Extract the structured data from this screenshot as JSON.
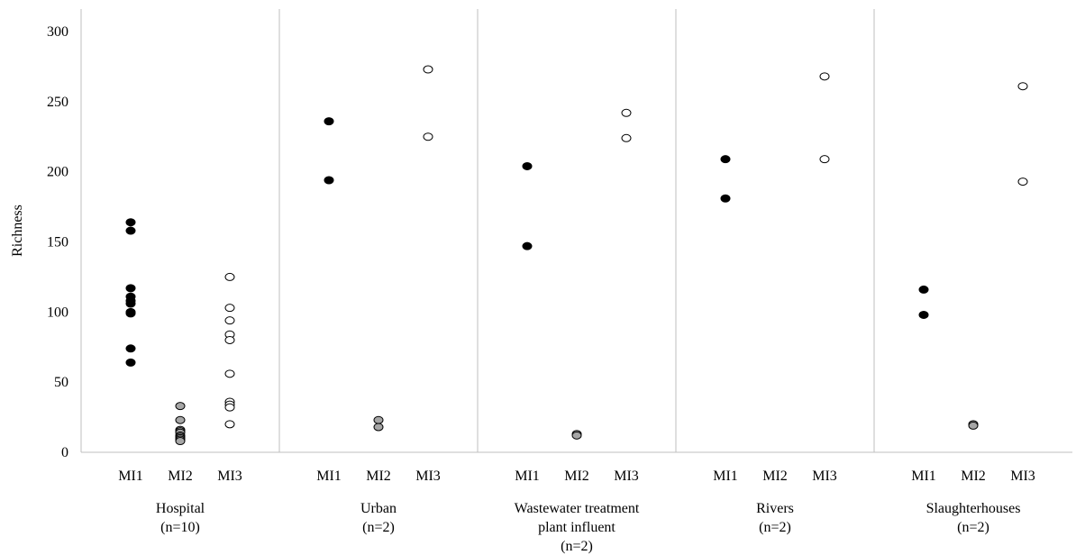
{
  "chart_data": {
    "type": "scatter",
    "title": "",
    "ylabel": "Richness",
    "xlabel": "",
    "ylim": [
      0,
      300
    ],
    "yticks": [
      0,
      50,
      100,
      150,
      200,
      250,
      300
    ],
    "grid": false,
    "colors": {
      "MI1": "#000000",
      "MI2": "#a6a6a6",
      "MI3": "#ffffff",
      "outline": "#000000",
      "axis": "#bfbfbf"
    },
    "subcategories": [
      "MI1",
      "MI2",
      "MI3"
    ],
    "groups": [
      {
        "label_lines": [
          "Hospital",
          "(n=10)"
        ],
        "points": {
          "MI1": [
            164,
            158,
            117,
            111,
            108,
            106,
            100,
            99,
            74,
            64
          ],
          "MI2": [
            33,
            23,
            16,
            15,
            14,
            12,
            11,
            10,
            9,
            8
          ],
          "MI3": [
            125,
            103,
            94,
            84,
            80,
            56,
            36,
            34,
            32,
            20
          ]
        }
      },
      {
        "label_lines": [
          "Urban",
          "(n=2)"
        ],
        "points": {
          "MI1": [
            236,
            194
          ],
          "MI2": [
            23,
            18
          ],
          "MI3": [
            273,
            225
          ]
        }
      },
      {
        "label_lines": [
          "Wastewater treatment",
          "plant influent",
          "(n=2)"
        ],
        "points": {
          "MI1": [
            204,
            147
          ],
          "MI2": [
            13,
            12
          ],
          "MI3": [
            242,
            224
          ]
        }
      },
      {
        "label_lines": [
          "Rivers",
          "(n=2)"
        ],
        "points": {
          "MI1": [
            209,
            181
          ],
          "MI2": [],
          "MI3": [
            268,
            209
          ]
        }
      },
      {
        "label_lines": [
          "Slaughterhouses",
          "(n=2)"
        ],
        "points": {
          "MI1": [
            116,
            98
          ],
          "MI2": [
            20,
            19
          ],
          "MI3": [
            261,
            193
          ]
        }
      }
    ]
  }
}
